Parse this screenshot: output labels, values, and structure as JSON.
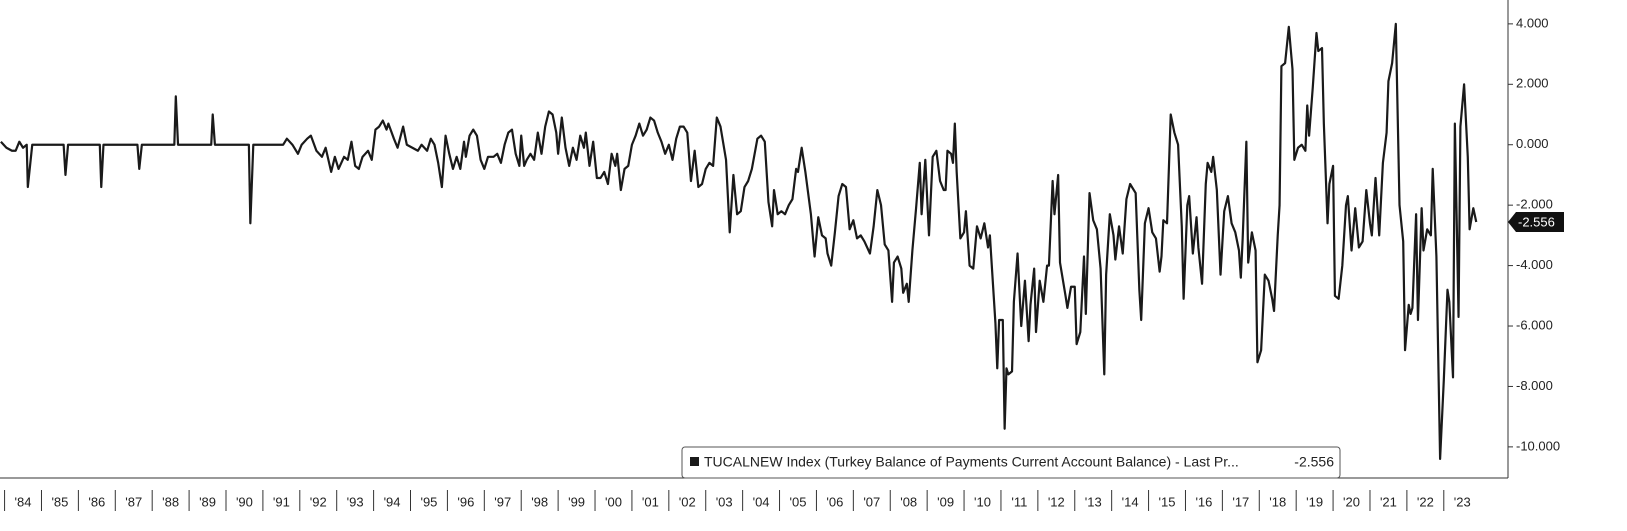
{
  "chart_data": {
    "type": "line",
    "legend": "TUCALNEW Index (Turkey Balance of Payments Current Account Balance) - Last Pr...",
    "xlim": [
      1983.876,
      2024.74
    ],
    "ylim": [
      -11.03,
      4.79
    ],
    "yticks": [
      {
        "value": 4,
        "label": "4.000"
      },
      {
        "value": 2,
        "label": "2.000"
      },
      {
        "value": 0,
        "label": "0.000"
      },
      {
        "value": -2,
        "label": "-2.000"
      },
      {
        "value": -4,
        "label": "-4.000"
      },
      {
        "value": -6,
        "label": "-6.000"
      },
      {
        "value": -8,
        "label": "-8.000"
      },
      {
        "value": -10,
        "label": "-10.000"
      }
    ],
    "xticks": [
      {
        "value": 1984,
        "label": "'84"
      },
      {
        "value": 1985,
        "label": "'85"
      },
      {
        "value": 1986,
        "label": "'86"
      },
      {
        "value": 1987,
        "label": "'87"
      },
      {
        "value": 1988,
        "label": "'88"
      },
      {
        "value": 1989,
        "label": "'89"
      },
      {
        "value": 1990,
        "label": "'90"
      },
      {
        "value": 1991,
        "label": "'91"
      },
      {
        "value": 1992,
        "label": "'92"
      },
      {
        "value": 1993,
        "label": "'93"
      },
      {
        "value": 1994,
        "label": "'94"
      },
      {
        "value": 1995,
        "label": "'95"
      },
      {
        "value": 1996,
        "label": "'96"
      },
      {
        "value": 1997,
        "label": "'97"
      },
      {
        "value": 1998,
        "label": "'98"
      },
      {
        "value": 1999,
        "label": "'99"
      },
      {
        "value": 2000,
        "label": "'00"
      },
      {
        "value": 2001,
        "label": "'01"
      },
      {
        "value": 2002,
        "label": "'02"
      },
      {
        "value": 2003,
        "label": "'03"
      },
      {
        "value": 2004,
        "label": "'04"
      },
      {
        "value": 2005,
        "label": "'05"
      },
      {
        "value": 2006,
        "label": "'06"
      },
      {
        "value": 2007,
        "label": "'07"
      },
      {
        "value": 2008,
        "label": "'08"
      },
      {
        "value": 2009,
        "label": "'09"
      },
      {
        "value": 2010,
        "label": "'10"
      },
      {
        "value": 2011,
        "label": "'11"
      },
      {
        "value": 2012,
        "label": "'12"
      },
      {
        "value": 2013,
        "label": "'13"
      },
      {
        "value": 2014,
        "label": "'14"
      },
      {
        "value": 2015,
        "label": "'15"
      },
      {
        "value": 2016,
        "label": "'16"
      },
      {
        "value": 2017,
        "label": "'17"
      },
      {
        "value": 2018,
        "label": "'18"
      },
      {
        "value": 2019,
        "label": "'19"
      },
      {
        "value": 2020,
        "label": "'20"
      },
      {
        "value": 2021,
        "label": "'21"
      },
      {
        "value": 2022,
        "label": "'22"
      },
      {
        "value": 2023,
        "label": "'23"
      }
    ],
    "x": [
      1983.9,
      1984.05,
      1984.2,
      1984.3,
      1984.4,
      1984.5,
      1984.6,
      1984.63,
      1984.75,
      1985.6,
      1985.65,
      1985.72,
      1986.58,
      1986.62,
      1986.68,
      1987.6,
      1987.65,
      1987.72,
      1988.6,
      1988.64,
      1988.7,
      1989.6,
      1989.64,
      1989.7,
      1990.62,
      1990.66,
      1990.74,
      1991.55,
      1991.65,
      1991.8,
      1991.95,
      1992.05,
      1992.2,
      1992.3,
      1992.45,
      1992.6,
      1992.7,
      1992.85,
      1992.95,
      1993.05,
      1993.2,
      1993.3,
      1993.4,
      1993.5,
      1993.6,
      1993.7,
      1993.85,
      1993.95,
      1994.05,
      1994.15,
      1994.25,
      1994.35,
      1994.4,
      1994.55,
      1994.65,
      1994.8,
      1994.9,
      1995.05,
      1995.2,
      1995.3,
      1995.45,
      1995.55,
      1995.65,
      1995.75,
      1995.85,
      1995.95,
      1996.05,
      1996.15,
      1996.25,
      1996.35,
      1996.45,
      1996.5,
      1996.6,
      1996.7,
      1996.8,
      1996.9,
      1997.0,
      1997.1,
      1997.25,
      1997.35,
      1997.45,
      1997.55,
      1997.65,
      1997.75,
      1997.85,
      1997.95,
      1998.0,
      1998.08,
      1998.15,
      1998.25,
      1998.35,
      1998.45,
      1998.55,
      1998.65,
      1998.75,
      1998.85,
      1998.95,
      1999.0,
      1999.1,
      1999.2,
      1999.3,
      1999.4,
      1999.5,
      1999.6,
      1999.7,
      1999.75,
      1999.85,
      1999.95,
      2000.05,
      2000.15,
      2000.25,
      2000.35,
      2000.45,
      2000.55,
      2000.6,
      2000.7,
      2000.8,
      2000.9,
      2001.0,
      2001.1,
      2001.2,
      2001.3,
      2001.4,
      2001.5,
      2001.6,
      2001.7,
      2001.8,
      2001.9,
      2002.0,
      2002.1,
      2002.2,
      2002.3,
      2002.4,
      2002.5,
      2002.6,
      2002.7,
      2002.8,
      2002.9,
      2003.0,
      2003.1,
      2003.2,
      2003.3,
      2003.4,
      2003.55,
      2003.65,
      2003.75,
      2003.85,
      2003.95,
      2004.05,
      2004.15,
      2004.25,
      2004.4,
      2004.5,
      2004.6,
      2004.7,
      2004.8,
      2004.85,
      2004.95,
      2005.05,
      2005.15,
      2005.25,
      2005.35,
      2005.45,
      2005.5,
      2005.6,
      2005.7,
      2005.85,
      2005.95,
      2006.05,
      2006.15,
      2006.25,
      2006.3,
      2006.4,
      2006.5,
      2006.6,
      2006.7,
      2006.8,
      2006.9,
      2007.0,
      2007.1,
      2007.2,
      2007.3,
      2007.45,
      2007.55,
      2007.65,
      2007.75,
      2007.85,
      2007.95,
      2008.05,
      2008.1,
      2008.2,
      2008.3,
      2008.35,
      2008.45,
      2008.5,
      2008.6,
      2008.7,
      2008.8,
      2008.85,
      2008.95,
      2009.05,
      2009.15,
      2009.25,
      2009.35,
      2009.45,
      2009.5,
      2009.55,
      2009.65,
      2009.7,
      2009.75,
      2009.8,
      2009.9,
      2010.0,
      2010.05,
      2010.15,
      2010.25,
      2010.35,
      2010.45,
      2010.55,
      2010.65,
      2010.7,
      2010.85,
      2010.9,
      2010.95,
      2011.05,
      2011.1,
      2011.15,
      2011.2,
      2011.3,
      2011.35,
      2011.45,
      2011.55,
      2011.65,
      2011.75,
      2011.8,
      2011.9,
      2011.95,
      2012.05,
      2012.15,
      2012.25,
      2012.3,
      2012.4,
      2012.45,
      2012.55,
      2012.6,
      2012.75,
      2012.8,
      2012.9,
      2013.0,
      2013.05,
      2013.15,
      2013.25,
      2013.3,
      2013.4,
      2013.5,
      2013.6,
      2013.7,
      2013.8,
      2013.85,
      2013.95,
      2014.05,
      2014.1,
      2014.2,
      2014.3,
      2014.4,
      2014.5,
      2014.6,
      2014.65,
      2014.75,
      2014.8,
      2014.9,
      2015.0,
      2015.1,
      2015.2,
      2015.3,
      2015.35,
      2015.4,
      2015.5,
      2015.6,
      2015.7,
      2015.8,
      2015.9,
      2015.95,
      2016.05,
      2016.1,
      2016.2,
      2016.3,
      2016.35,
      2016.45,
      2016.55,
      2016.6,
      2016.7,
      2016.75,
      2016.85,
      2016.95,
      2017.05,
      2017.15,
      2017.25,
      2017.35,
      2017.45,
      2017.5,
      2017.55,
      2017.65,
      2017.7,
      2017.8,
      2017.9,
      2017.95,
      2018.05,
      2018.15,
      2018.25,
      2018.35,
      2018.4,
      2018.5,
      2018.55,
      2018.6,
      2018.7,
      2018.8,
      2018.9,
      2018.95,
      2019.05,
      2019.15,
      2019.25,
      2019.3,
      2019.35,
      2019.45,
      2019.55,
      2019.6,
      2019.7,
      2019.75,
      2019.85,
      2019.9,
      2020.0,
      2020.05,
      2020.15,
      2020.25,
      2020.35,
      2020.4,
      2020.5,
      2020.6,
      2020.7,
      2020.8,
      2020.9,
      2021.0,
      2021.05,
      2021.15,
      2021.25,
      2021.35,
      2021.45,
      2021.5,
      2021.6,
      2021.7,
      2021.8,
      2021.9,
      2021.95,
      2022.05,
      2022.1,
      2022.15,
      2022.25,
      2022.3,
      2022.4,
      2022.45,
      2022.55,
      2022.65,
      2022.7,
      2022.8,
      2022.9,
      2023.0,
      2023.1,
      2023.15,
      2023.25,
      2023.3,
      2023.4,
      2023.45,
      2023.55,
      2023.65,
      2023.7,
      2023.8,
      2023.88
    ],
    "series": [
      {
        "name": "TUCALNEW Index",
        "color": "#1a1a1a",
        "values": [
          0.1,
          -0.1,
          -0.2,
          -0.2,
          0.1,
          -0.1,
          0,
          -1.4,
          0,
          0,
          -1.0,
          0,
          0,
          -1.4,
          0,
          0,
          -0.8,
          0,
          0,
          1.6,
          0,
          0,
          1.0,
          0,
          0,
          -2.6,
          0,
          0,
          0.2,
          0,
          -0.3,
          0,
          0.2,
          0.3,
          -0.2,
          -0.4,
          -0.1,
          -0.9,
          -0.4,
          -0.8,
          -0.4,
          -0.5,
          0.1,
          -0.7,
          -0.8,
          -0.4,
          -0.2,
          -0.5,
          0.5,
          0.6,
          0.8,
          0.5,
          0.7,
          0.2,
          -0.1,
          0.6,
          0,
          -0.1,
          -0.2,
          0,
          -0.2,
          0.2,
          0,
          -0.6,
          -1.4,
          0.3,
          -0.3,
          -0.8,
          -0.4,
          -0.8,
          0.1,
          -0.4,
          0.3,
          0.5,
          0.3,
          -0.5,
          -0.8,
          -0.4,
          -0.4,
          -0.3,
          -0.6,
          0,
          0.4,
          0.5,
          -0.3,
          -0.7,
          0.3,
          -0.7,
          -0.5,
          -0.3,
          -0.5,
          0.4,
          -0.3,
          0.6,
          1.1,
          1.0,
          0.4,
          -0.3,
          0.9,
          -0.1,
          -0.7,
          -0.1,
          -0.5,
          0.3,
          -0.1,
          0.4,
          -0.7,
          0.1,
          -1.1,
          -1.1,
          -0.9,
          -1.3,
          -0.3,
          -0.7,
          -0.3,
          -1.5,
          -0.8,
          -0.7,
          0,
          0.3,
          0.7,
          0.3,
          0.5,
          0.9,
          0.8,
          0.4,
          0.1,
          -0.3,
          0,
          -0.5,
          0.2,
          0.6,
          0.6,
          0.4,
          -1.2,
          -0.2,
          -1.4,
          -1.3,
          -0.8,
          -0.6,
          -0.7,
          0.9,
          0.6,
          -0.5,
          -2.9,
          -1.0,
          -2.3,
          -2.2,
          -1.4,
          -1.2,
          -0.8,
          0.2,
          0.3,
          0.1,
          -1.9,
          -2.7,
          -1.5,
          -2.3,
          -2.2,
          -2.3,
          -2.0,
          -1.8,
          -0.8,
          -0.9,
          -0.1,
          -0.9,
          -2.3,
          -3.7,
          -2.4,
          -3.0,
          -3.1,
          -3.6,
          -4.0,
          -2.9,
          -1.7,
          -1.3,
          -1.4,
          -2.8,
          -2.5,
          -3.1,
          -3.0,
          -3.2,
          -3.6,
          -2.7,
          -1.5,
          -2.0,
          -3.3,
          -3.5,
          -5.2,
          -3.9,
          -3.7,
          -4.1,
          -4.9,
          -4.6,
          -5.2,
          -3.5,
          -2.1,
          -0.6,
          -2.3,
          -0.5,
          -3.0,
          -0.4,
          -0.2,
          -1.2,
          -1.5,
          -1.5,
          -0.2,
          -0.3,
          -0.6,
          0.7,
          -0.9,
          -3.1,
          -2.9,
          -2.2,
          -4.0,
          -4.1,
          -2.7,
          -3.1,
          -2.6,
          -3.4,
          -3.0,
          -5.9,
          -7.4,
          -5.8,
          -5.8,
          -9.4,
          -7.4,
          -7.6,
          -7.5,
          -5.2,
          -3.6,
          -6.0,
          -4.5,
          -6.5,
          -5.3,
          -4.1,
          -6.2,
          -4.5,
          -5.2,
          -4.0,
          -4.0,
          -1.2,
          -2.3,
          -1.0,
          -3.9,
          -5.0,
          -5.4,
          -4.7,
          -4.7,
          -6.6,
          -6.2,
          -3.7,
          -5.6,
          -1.6,
          -2.5,
          -2.8,
          -4.1,
          -7.6,
          -4.3,
          -2.3,
          -3.0,
          -3.8,
          -2.7,
          -3.6,
          -1.8,
          -1.3,
          -1.5,
          -1.6,
          -4.8,
          -5.8,
          -2.6,
          -2.1,
          -2.9,
          -3.1,
          -4.2,
          -3.7,
          -2.5,
          -2.6,
          1.0,
          0.4,
          0,
          -2.7,
          -5.1,
          -2.0,
          -1.7,
          -3.6,
          -2.4,
          -3.4,
          -4.6,
          -1.3,
          -0.6,
          -0.9,
          -0.4,
          -1.5,
          -4.3,
          -2.2,
          -1.7,
          -2.6,
          -2.9,
          -3.5,
          -4.4,
          -3.1,
          0.1,
          -3.9,
          -2.9,
          -3.5,
          -7.2,
          -6.8,
          -4.3,
          -4.5,
          -5.1,
          -5.5,
          -3.0,
          -2.0,
          2.6,
          2.7,
          3.9,
          2.5,
          -0.5,
          -0.1,
          0,
          -0.2,
          1.3,
          0.3,
          1.9,
          3.7,
          3.1,
          3.2,
          0.7,
          -2.6,
          -1.3,
          -0.7,
          -5.0,
          -5.1,
          -4.0,
          -2.0,
          -1.7,
          -3.5,
          -2.1,
          -3.4,
          -3.2,
          -1.5,
          -2.6,
          -3.0,
          -1.1,
          -3.0,
          -0.6,
          0.4,
          2.1,
          2.7,
          4.0,
          -2.0,
          -3.2,
          -6.8,
          -5.3,
          -5.6,
          -5.4,
          -2.3,
          -5.8,
          -2.1,
          -3.5,
          -2.8,
          -3.0,
          -0.8,
          -3.7,
          -10.4,
          -7.8,
          -4.8,
          -5.2,
          -7.7,
          0.7,
          -5.7,
          0.6,
          2.0,
          -0.4,
          -2.8,
          -2.1,
          -2.556
        ]
      }
    ]
  }
}
